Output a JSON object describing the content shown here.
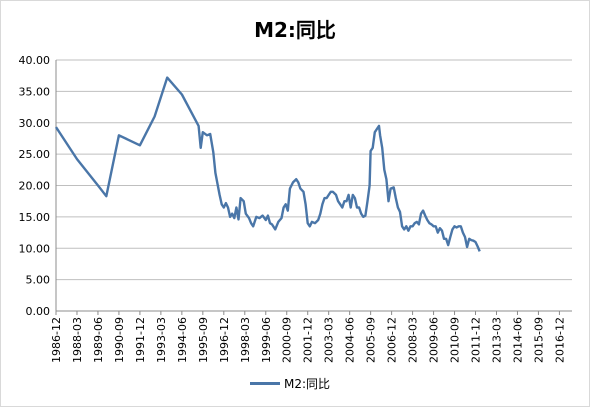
{
  "chart_data": {
    "type": "line",
    "title": "M2:同比",
    "xlabel": "",
    "ylabel": "",
    "ylim": [
      0,
      40
    ],
    "yticks": [
      "0.00",
      "5.00",
      "10.00",
      "15.00",
      "20.00",
      "25.00",
      "30.00",
      "35.00",
      "40.00"
    ],
    "grid": "horizontal",
    "legend": "bottom",
    "categories": [
      "1986-12",
      "1988-03",
      "1989-06",
      "1990-09",
      "1991-12",
      "1993-03",
      "1994-06",
      "1995-09",
      "1996-12",
      "1998-03",
      "1999-06",
      "2000-09",
      "2001-12",
      "2003-03",
      "2004-06",
      "2005-09",
      "2006-12",
      "2008-03",
      "2009-06",
      "2010-09",
      "2011-12",
      "2013-03",
      "2014-06",
      "2015-09",
      "2016-12"
    ],
    "series": [
      {
        "name": "M2:同比",
        "color": "#4a76a8",
        "points": [
          [
            0,
            29.3
          ],
          [
            1,
            24.2
          ],
          [
            2,
            20.0
          ],
          [
            2.4,
            18.3
          ],
          [
            3,
            28.0
          ],
          [
            4,
            26.4
          ],
          [
            4.7,
            31.0
          ],
          [
            5.3,
            37.2
          ],
          [
            6,
            34.5
          ],
          [
            6.8,
            29.5
          ],
          [
            6.9,
            26.0
          ],
          [
            7.0,
            28.5
          ],
          [
            7.2,
            28.0
          ],
          [
            7.35,
            28.2
          ],
          [
            7.5,
            25.3
          ],
          [
            7.6,
            22.0
          ],
          [
            7.8,
            18.5
          ],
          [
            7.9,
            17.0
          ],
          [
            8.0,
            16.5
          ],
          [
            8.1,
            17.2
          ],
          [
            8.2,
            16.5
          ],
          [
            8.3,
            15.0
          ],
          [
            8.4,
            15.5
          ],
          [
            8.5,
            14.8
          ],
          [
            8.6,
            16.5
          ],
          [
            8.7,
            14.6
          ],
          [
            8.8,
            18.0
          ],
          [
            8.95,
            17.5
          ],
          [
            9.05,
            15.5
          ],
          [
            9.2,
            14.8
          ],
          [
            9.3,
            14.0
          ],
          [
            9.4,
            13.5
          ],
          [
            9.55,
            15.0
          ],
          [
            9.7,
            14.8
          ],
          [
            9.85,
            15.2
          ],
          [
            10.0,
            14.5
          ],
          [
            10.1,
            15.2
          ],
          [
            10.2,
            14.0
          ],
          [
            10.3,
            13.8
          ],
          [
            10.45,
            13.0
          ],
          [
            10.6,
            14.2
          ],
          [
            10.75,
            14.8
          ],
          [
            10.85,
            16.5
          ],
          [
            10.95,
            17.0
          ],
          [
            11.05,
            16.0
          ],
          [
            11.15,
            19.5
          ],
          [
            11.3,
            20.5
          ],
          [
            11.45,
            21.0
          ],
          [
            11.55,
            20.5
          ],
          [
            11.65,
            19.5
          ],
          [
            11.8,
            19.0
          ],
          [
            11.9,
            17.0
          ],
          [
            12.0,
            14.0
          ],
          [
            12.1,
            13.5
          ],
          [
            12.2,
            14.2
          ],
          [
            12.35,
            14.0
          ],
          [
            12.5,
            14.5
          ],
          [
            12.6,
            15.5
          ],
          [
            12.7,
            17.0
          ],
          [
            12.8,
            18.0
          ],
          [
            12.9,
            18.0
          ],
          [
            13.0,
            18.5
          ],
          [
            13.1,
            19.0
          ],
          [
            13.2,
            19.0
          ],
          [
            13.35,
            18.5
          ],
          [
            13.45,
            17.5
          ],
          [
            13.55,
            17.0
          ],
          [
            13.65,
            16.5
          ],
          [
            13.75,
            17.5
          ],
          [
            13.85,
            17.5
          ],
          [
            13.95,
            18.5
          ],
          [
            14.05,
            16.5
          ],
          [
            14.15,
            18.5
          ],
          [
            14.25,
            18.0
          ],
          [
            14.35,
            16.5
          ],
          [
            14.45,
            16.5
          ],
          [
            14.55,
            15.5
          ],
          [
            14.65,
            15.0
          ],
          [
            14.75,
            15.2
          ],
          [
            14.85,
            17.5
          ],
          [
            14.95,
            20.0
          ],
          [
            15.0,
            25.5
          ],
          [
            15.1,
            26.0
          ],
          [
            15.2,
            28.5
          ],
          [
            15.3,
            29.0
          ],
          [
            15.4,
            29.5
          ],
          [
            15.45,
            28.0
          ],
          [
            15.55,
            26.0
          ],
          [
            15.65,
            22.5
          ],
          [
            15.75,
            21.0
          ],
          [
            15.85,
            17.5
          ],
          [
            15.95,
            19.5
          ],
          [
            16.1,
            19.7
          ],
          [
            16.2,
            18.0
          ],
          [
            16.3,
            16.5
          ],
          [
            16.4,
            15.8
          ],
          [
            16.5,
            13.5
          ],
          [
            16.6,
            13.0
          ],
          [
            16.7,
            13.5
          ],
          [
            16.8,
            12.8
          ],
          [
            16.9,
            13.5
          ],
          [
            17.0,
            13.5
          ],
          [
            17.1,
            14.0
          ],
          [
            17.2,
            14.2
          ],
          [
            17.3,
            13.8
          ],
          [
            17.4,
            15.5
          ],
          [
            17.5,
            16.0
          ],
          [
            17.6,
            15.2
          ],
          [
            17.7,
            14.5
          ],
          [
            17.8,
            14.0
          ],
          [
            17.9,
            13.8
          ],
          [
            18.0,
            13.5
          ],
          [
            18.1,
            13.5
          ],
          [
            18.2,
            12.5
          ],
          [
            18.3,
            13.2
          ],
          [
            18.4,
            12.8
          ],
          [
            18.5,
            11.5
          ],
          [
            18.6,
            11.5
          ],
          [
            18.7,
            10.5
          ],
          [
            18.8,
            11.8
          ],
          [
            18.9,
            13.0
          ],
          [
            19.0,
            13.5
          ],
          [
            19.1,
            13.3
          ],
          [
            19.2,
            13.5
          ],
          [
            19.3,
            13.5
          ],
          [
            19.4,
            12.5
          ],
          [
            19.5,
            11.8
          ],
          [
            19.6,
            10.2
          ],
          [
            19.7,
            11.5
          ],
          [
            19.8,
            11.3
          ],
          [
            19.9,
            11.2
          ],
          [
            20.0,
            11.0
          ],
          [
            20.1,
            10.3
          ],
          [
            20.2,
            9.5
          ]
        ]
      }
    ]
  }
}
